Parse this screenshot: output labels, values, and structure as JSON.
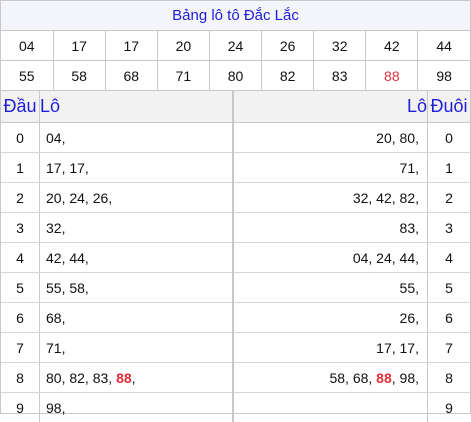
{
  "title": "Bảng lô tô Đắc Lắc",
  "numbers": {
    "row1": [
      "04",
      "17",
      "17",
      "20",
      "24",
      "26",
      "32",
      "42",
      "44"
    ],
    "row2": [
      "55",
      "58",
      "68",
      "71",
      "80",
      "82",
      "83",
      "88",
      "98"
    ],
    "highlight_color": "#e0303a"
  },
  "header": {
    "dau": "Đầu",
    "lo_left": "Lô",
    "lo_right": "Lô",
    "duoi": "Đuôi"
  },
  "rows": [
    {
      "dau": "0",
      "left": "04,",
      "right": "20, 80,",
      "duoi": "0"
    },
    {
      "dau": "1",
      "left": "17, 17,",
      "right": "71,",
      "duoi": "1"
    },
    {
      "dau": "2",
      "left": "20, 24, 26,",
      "right": "32, 42, 82,",
      "duoi": "2"
    },
    {
      "dau": "3",
      "left": "32,",
      "right": "83,",
      "duoi": "3"
    },
    {
      "dau": "4",
      "left": "42, 44,",
      "right": "04, 24, 44,",
      "duoi": "4"
    },
    {
      "dau": "5",
      "left": "55, 58,",
      "right": "55,",
      "duoi": "5"
    },
    {
      "dau": "6",
      "left": "68,",
      "right": "26,",
      "duoi": "6"
    },
    {
      "dau": "7",
      "left": "71,",
      "right": "17, 17,",
      "duoi": "7"
    },
    {
      "dau": "8",
      "left_pre": "80, 82, 83, ",
      "left_hot": "88",
      "left_post": ",",
      "right_pre": "58, 68, ",
      "right_hot": "88",
      "right_post": ", 98,",
      "duoi": "8"
    },
    {
      "dau": "9",
      "left": "98,",
      "right": "",
      "duoi": "9"
    }
  ]
}
